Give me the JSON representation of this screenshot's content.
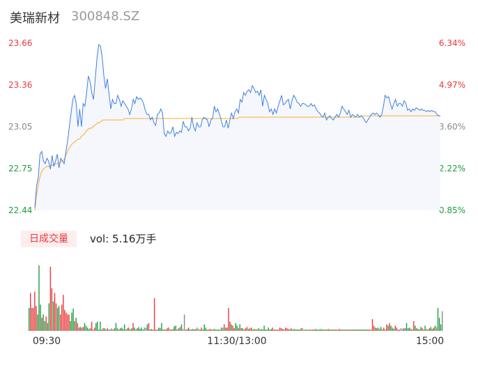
{
  "header": {
    "name": "美瑞新材",
    "code": "300848.SZ"
  },
  "volume_panel": {
    "tag": "日成交量",
    "vol_text": "vol: 5.16万手"
  },
  "colors": {
    "price_line": "#3f7fe0",
    "avg_line": "#f5b94a",
    "area_fill": "#f5f7fc",
    "up": "#e8383d",
    "down": "#1b9e3e",
    "flat": "#888888"
  },
  "chart_data": {
    "type": "line",
    "title": "",
    "x_labels": [
      "09:30",
      "11:30/13:00",
      "15:00"
    ],
    "y_left": {
      "ticks": [
        "23.66",
        "23.36",
        "23.05",
        "22.75",
        "22.44"
      ],
      "min": 22.44,
      "max": 23.66
    },
    "y_right": {
      "ticks": [
        "6.34%",
        "4.97%",
        "3.60%",
        "2.22%",
        "0.85%"
      ]
    },
    "prev_close": 23.05,
    "price_series": [
      22.46,
      22.62,
      22.68,
      22.85,
      22.87,
      22.8,
      22.78,
      22.82,
      22.8,
      22.74,
      22.84,
      22.76,
      22.8,
      22.85,
      22.75,
      22.82,
      22.8,
      22.78,
      22.87,
      22.95,
      23.05,
      23.15,
      23.25,
      23.28,
      23.22,
      23.05,
      23.18,
      23.05,
      23.22,
      23.2,
      23.3,
      23.42,
      23.38,
      23.3,
      23.25,
      23.4,
      23.55,
      23.65,
      23.64,
      23.56,
      23.42,
      23.33,
      23.4,
      23.29,
      23.18,
      23.25,
      23.22,
      23.22,
      23.28,
      23.25,
      23.2,
      23.24,
      23.22,
      23.2,
      23.18,
      23.14,
      23.18,
      23.25,
      23.22,
      23.27,
      23.25,
      23.26,
      23.25,
      23.22,
      23.17,
      23.14,
      23.14,
      23.1,
      23.12,
      23.08,
      23.06,
      23.14,
      23.15,
      23.18,
      23.15,
      23.0,
      22.98,
      23.02,
      23.0,
      23.01,
      23.05,
      22.98,
      23.01,
      23.0,
      23.02,
      23.01,
      23.09,
      23.05,
      23.05,
      23.02,
      23.04,
      23.12,
      23.05,
      23.02,
      23.08,
      23.05,
      23.05,
      23.1,
      23.12,
      23.11,
      23.1,
      23.05,
      23.1,
      23.11,
      23.2,
      23.16,
      23.18,
      23.14,
      23.1,
      23.05,
      23.05,
      23.1,
      23.04,
      23.1,
      23.15,
      23.11,
      23.16,
      23.18,
      23.15,
      23.25,
      23.23,
      23.3,
      23.28,
      23.31,
      23.32,
      23.3,
      23.35,
      23.33,
      23.3,
      23.31,
      23.28,
      23.32,
      23.2,
      23.28,
      23.25,
      23.22,
      23.16,
      23.18,
      23.14,
      23.18,
      23.15,
      23.2,
      23.24,
      23.28,
      23.21,
      23.22,
      23.24,
      23.25,
      23.18,
      23.24,
      23.28,
      23.26,
      23.23,
      23.22,
      23.2,
      23.22,
      23.22,
      23.21,
      23.2,
      23.2,
      23.22,
      23.2,
      23.21,
      23.18,
      23.16,
      23.15,
      23.13,
      23.12,
      23.15,
      23.1,
      23.12,
      23.13,
      23.11,
      23.1,
      23.12,
      23.14,
      23.12,
      23.15,
      23.2,
      23.18,
      23.16,
      23.14,
      23.17,
      23.12,
      23.14,
      23.13,
      23.12,
      23.14,
      23.12,
      23.13,
      23.12,
      23.1,
      23.08,
      23.1,
      23.12,
      23.14,
      23.15,
      23.14,
      23.15,
      23.14,
      23.12,
      23.14,
      23.2,
      23.28,
      23.26,
      23.27,
      23.22,
      23.18,
      23.22,
      23.25,
      23.2,
      23.22,
      23.22,
      23.2,
      23.24,
      23.22,
      23.17,
      23.18,
      23.16,
      23.18,
      23.17,
      23.19,
      23.18,
      23.17,
      23.18,
      23.17,
      23.17,
      23.16,
      23.17,
      23.16,
      23.17,
      23.16,
      23.16,
      23.14,
      23.13,
      23.13
    ],
    "avg_series": [
      22.44,
      22.55,
      22.62,
      22.68,
      22.72,
      22.74,
      22.75,
      22.76,
      22.76,
      22.76,
      22.77,
      22.77,
      22.78,
      22.78,
      22.78,
      22.79,
      22.8,
      22.8,
      22.82,
      22.85,
      22.88,
      22.9,
      22.92,
      22.93,
      22.94,
      22.95,
      22.96,
      22.96,
      22.98,
      22.99,
      23.0,
      23.02,
      23.03,
      23.04,
      23.04,
      23.05,
      23.06,
      23.07,
      23.08,
      23.08,
      23.09,
      23.1,
      23.1,
      23.1,
      23.1,
      23.1,
      23.1,
      23.1,
      23.1,
      23.1,
      23.1,
      23.1,
      23.1,
      23.1,
      23.11,
      23.11,
      23.11,
      23.11,
      23.11,
      23.11,
      23.11,
      23.11,
      23.11,
      23.11,
      23.11,
      23.11,
      23.11,
      23.11,
      23.11,
      23.11,
      23.11,
      23.11,
      23.11,
      23.11,
      23.11,
      23.11,
      23.11,
      23.11,
      23.11,
      23.11,
      23.11,
      23.11,
      23.11,
      23.11,
      23.11,
      23.11,
      23.11,
      23.11,
      23.11,
      23.11,
      23.11,
      23.11,
      23.11,
      23.11,
      23.11,
      23.11,
      23.11,
      23.11,
      23.11,
      23.11,
      23.11,
      23.11,
      23.11,
      23.11,
      23.11,
      23.11,
      23.11,
      23.11,
      23.11,
      23.11,
      23.11,
      23.11,
      23.11,
      23.11,
      23.11,
      23.11,
      23.11,
      23.11,
      23.11,
      23.11,
      23.11,
      23.11,
      23.11,
      23.12,
      23.12,
      23.12,
      23.12,
      23.12,
      23.12,
      23.12,
      23.12,
      23.12,
      23.12,
      23.12,
      23.12,
      23.12,
      23.12,
      23.12,
      23.12,
      23.12,
      23.12,
      23.12,
      23.12,
      23.12,
      23.12,
      23.12,
      23.12,
      23.12,
      23.12,
      23.12,
      23.12,
      23.12,
      23.12,
      23.12,
      23.12,
      23.12,
      23.12,
      23.12,
      23.12,
      23.12,
      23.12,
      23.12,
      23.12,
      23.12,
      23.12,
      23.12,
      23.12,
      23.12,
      23.12,
      23.12,
      23.12,
      23.12,
      23.12,
      23.12,
      23.12,
      23.12,
      23.12,
      23.12,
      23.12,
      23.12,
      23.12,
      23.12,
      23.12,
      23.12,
      23.12,
      23.12,
      23.12,
      23.12,
      23.12,
      23.12,
      23.12,
      23.12,
      23.12,
      23.12,
      23.12,
      23.12,
      23.13,
      23.13,
      23.13,
      23.13,
      23.13,
      23.13,
      23.13,
      23.13,
      23.13,
      23.13,
      23.13,
      23.13,
      23.13,
      23.13,
      23.13,
      23.13,
      23.13,
      23.13,
      23.13,
      23.13,
      23.13,
      23.13,
      23.13,
      23.13,
      23.13,
      23.13,
      23.13,
      23.13,
      23.13,
      23.13,
      23.13,
      23.13,
      23.13,
      23.13,
      23.13,
      23.13,
      23.13,
      23.13,
      23.13,
      23.13,
      23.13,
      23.13,
      23.13,
      23.13,
      23.13,
      23.13,
      23.13,
      23.13,
      23.13
    ],
    "volume_series": [
      0.35,
      0.58,
      0.35,
      0.35,
      0.6,
      0.38,
      0.25,
      1.0,
      0.4,
      0.2,
      0.25,
      0.15,
      0.22,
      0.12,
      0.42,
      0.98,
      0.65,
      0.45,
      0.58,
      0.42,
      0.35,
      0.38,
      0.25,
      0.4,
      0.55,
      0.32,
      0.28,
      0.25,
      0.25,
      0.15,
      0.28,
      0.34,
      0.15,
      0.2,
      0.12,
      0.05,
      0.06,
      0.05,
      0.06,
      0.12,
      0.08,
      0.05,
      0.03,
      0.04,
      0.14,
      0.02,
      0.05,
      0.12,
      0.14,
      0.02,
      0.14,
      0.02,
      0.04,
      0.04,
      0.02,
      0.04,
      0.02,
      0.02,
      0.04,
      0.02,
      0.04,
      0.12,
      0.04,
      0.02,
      0.04,
      0.05,
      0.03,
      0.1,
      0.02,
      0.04,
      0.05,
      0.02,
      0.04,
      0.12,
      0.05,
      0.02,
      0.04,
      0.06,
      0.03,
      0.05,
      0.02,
      0.05,
      0.05,
      0.1,
      0.12,
      0.02,
      0.03,
      0.02,
      0.5,
      0.02,
      0.02,
      0.05,
      0.04,
      0.12,
      0.02,
      0.02,
      0.02,
      0.04,
      0.05,
      0.02,
      0.02,
      0.03,
      0.07,
      0.08,
      0.02,
      0.04,
      0.06,
      0.1,
      0.03,
      0.25,
      0.02,
      0.03,
      0.05,
      0.02,
      0.02,
      0.03,
      0.02,
      0.03,
      0.05,
      0.03,
      0.02,
      0.05,
      0.02,
      0.1,
      0.05,
      0.02,
      0.02,
      0.03,
      0.02,
      0.02,
      0.03,
      0.02,
      0.02,
      0.02,
      0.02,
      0.05,
      0.05,
      0.1,
      0.05,
      0.05,
      0.35,
      0.14,
      0.1,
      0.08,
      0.04,
      0.12,
      0.08,
      0.04,
      0.1,
      0.04,
      0.04,
      0.02,
      0.04,
      0.06,
      0.03,
      0.04,
      0.05,
      0.02,
      0.03,
      0.02,
      0.02,
      0.04,
      0.02,
      0.03,
      0.02,
      0.08,
      0.02,
      0.02,
      0.05,
      0.02,
      0.03,
      0.05,
      0.02,
      0.02,
      0.02,
      0.02,
      0.05,
      0.04,
      0.03,
      0.02,
      0.05,
      0.04,
      0.03,
      0.02,
      0.04,
      0.02,
      0.03,
      0.02,
      0.02,
      0.02,
      0.02,
      0.04,
      0.04,
      0.02,
      0.02,
      0.02,
      0.02,
      0.02,
      0.02,
      0.02,
      0.02,
      0.03,
      0.02,
      0.02,
      0.02,
      0.03,
      0.02,
      0.02,
      0.02,
      0.02,
      0.03,
      0.02,
      0.02,
      0.02,
      0.02,
      0.02,
      0.02,
      0.02,
      0.03,
      0.02,
      0.02,
      0.02,
      0.02,
      0.02,
      0.02,
      0.02,
      0.02,
      0.02,
      0.02,
      0.02,
      0.02,
      0.02,
      0.02,
      0.02,
      0.02,
      0.02,
      0.02,
      0.02,
      0.02,
      0.02,
      0.02,
      0.18,
      0.08,
      0.05,
      0.04,
      0.05,
      0.03,
      0.06,
      0.02,
      0.05,
      0.02,
      0.1,
      0.08,
      0.12,
      0.08,
      0.05,
      0.03,
      0.08,
      0.05,
      0.02,
      0.02,
      0.04,
      0.03,
      0.04,
      0.04,
      0.12,
      0.04,
      0.05,
      0.03,
      0.02,
      0.15,
      0.08,
      0.04,
      0.03,
      0.02,
      0.06,
      0.04,
      0.02,
      0.08,
      0.03,
      0.02,
      0.04,
      0.06,
      0.03,
      0.05,
      0.08,
      0.06,
      0.35,
      0.2,
      0.1,
      0.3
    ]
  }
}
